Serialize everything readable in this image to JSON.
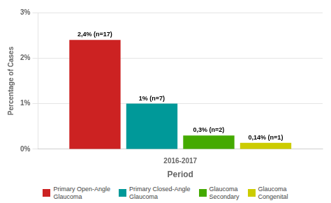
{
  "chart_data": {
    "type": "bar",
    "categories": [
      "2016-2017"
    ],
    "series": [
      {
        "name": "Primary Open-Angle\nGlaucoma",
        "color": "#cc2222",
        "values": [
          2.4
        ],
        "value_labels": [
          "2,4% (n=17)"
        ]
      },
      {
        "name": "Primary Closed-Angle\nGlaucoma",
        "color": "#009999",
        "values": [
          1.0
        ],
        "value_labels": [
          "1% (n=7)"
        ]
      },
      {
        "name": "Glaucoma\nSecondary",
        "color": "#44aa00",
        "values": [
          0.3
        ],
        "value_labels": [
          "0,3% (n=2)"
        ]
      },
      {
        "name": "Glaucoma\nCongenital",
        "color": "#cccc00",
        "values": [
          0.14
        ],
        "value_labels": [
          "0,14% (n=1)"
        ]
      }
    ],
    "xlabel": "Period",
    "ylabel": "Percentage of Cases",
    "ylim": [
      0,
      3
    ],
    "yticks": [
      {
        "value": 0,
        "label": "0%"
      },
      {
        "value": 1,
        "label": "1%"
      },
      {
        "value": 2,
        "label": "2%"
      },
      {
        "value": 3,
        "label": "3%"
      }
    ],
    "grid": true,
    "legend": "bottom"
  }
}
